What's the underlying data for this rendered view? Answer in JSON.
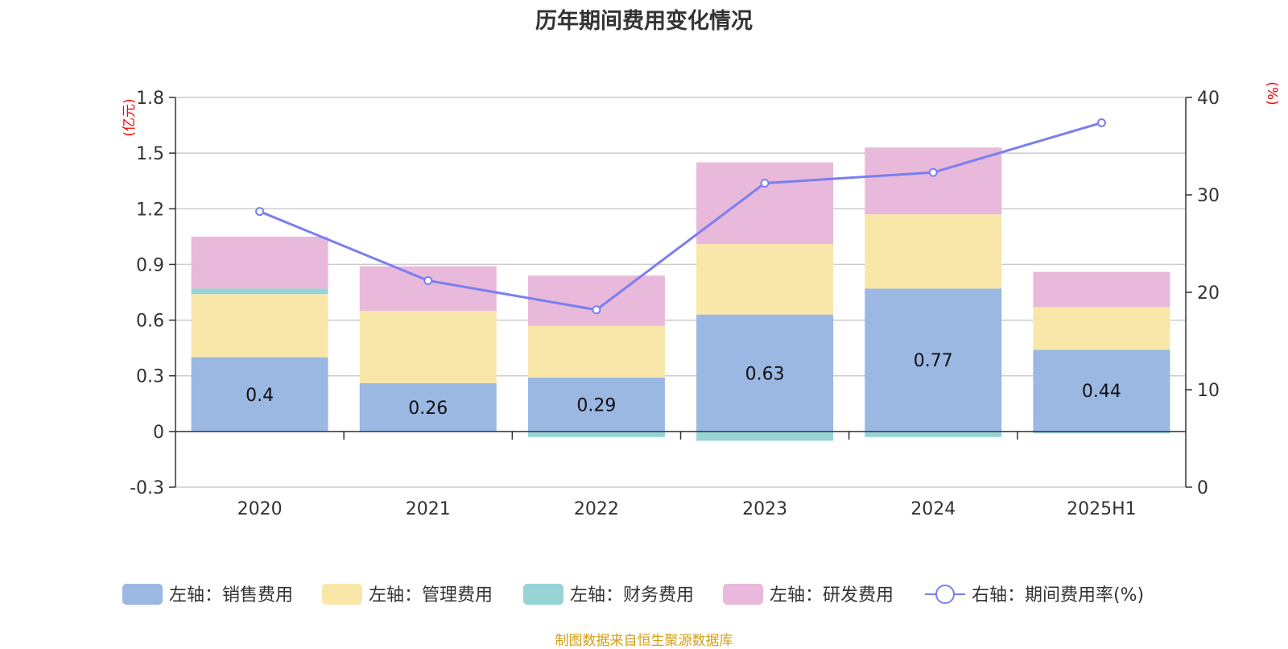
{
  "chart_data": {
    "type": "bar",
    "stacked": true,
    "title": "历年期间费用变化情况",
    "categories": [
      "2020",
      "2021",
      "2022",
      "2023",
      "2024",
      "2025H1"
    ],
    "y_left": {
      "unit": "(亿元)",
      "min": -0.3,
      "max": 1.8,
      "ticks": [
        "1.8",
        "1.5",
        "1.2",
        "0.9",
        "0.6",
        "0.3",
        "0",
        "-0.3"
      ]
    },
    "y_right": {
      "unit": "(%)",
      "min": 0,
      "max": 40,
      "ticks": [
        "40",
        "30",
        "20",
        "10",
        "0"
      ]
    },
    "series": [
      {
        "name": "左轴：销售费用",
        "axis": "left",
        "color": "#9bb8e2",
        "values": [
          0.4,
          0.26,
          0.29,
          0.63,
          0.77,
          0.44
        ],
        "labels": [
          "0.4",
          "0.26",
          "0.29",
          "0.63",
          "0.77",
          "0.44"
        ]
      },
      {
        "name": "左轴：管理费用",
        "axis": "left",
        "color": "#f8e7a8",
        "values": [
          0.34,
          0.39,
          0.28,
          0.38,
          0.4,
          0.23
        ]
      },
      {
        "name": "左轴：财务费用",
        "axis": "left",
        "color": "#96d4d6",
        "values": [
          0.03,
          -0.003,
          -0.03,
          -0.05,
          -0.03,
          -0.01
        ]
      },
      {
        "name": "左轴：研发费用",
        "axis": "left",
        "color": "#e8b9da",
        "values": [
          0.28,
          0.24,
          0.27,
          0.44,
          0.36,
          0.19
        ]
      },
      {
        "name": "右轴：期间费用率(%)",
        "axis": "right",
        "type": "line",
        "color": "#7a7ef0",
        "values": [
          28.3,
          21.2,
          18.2,
          31.2,
          32.3,
          37.4
        ]
      }
    ],
    "grid": true,
    "legend_position": "bottom"
  },
  "source_note": "制图数据来自恒生聚源数据库"
}
